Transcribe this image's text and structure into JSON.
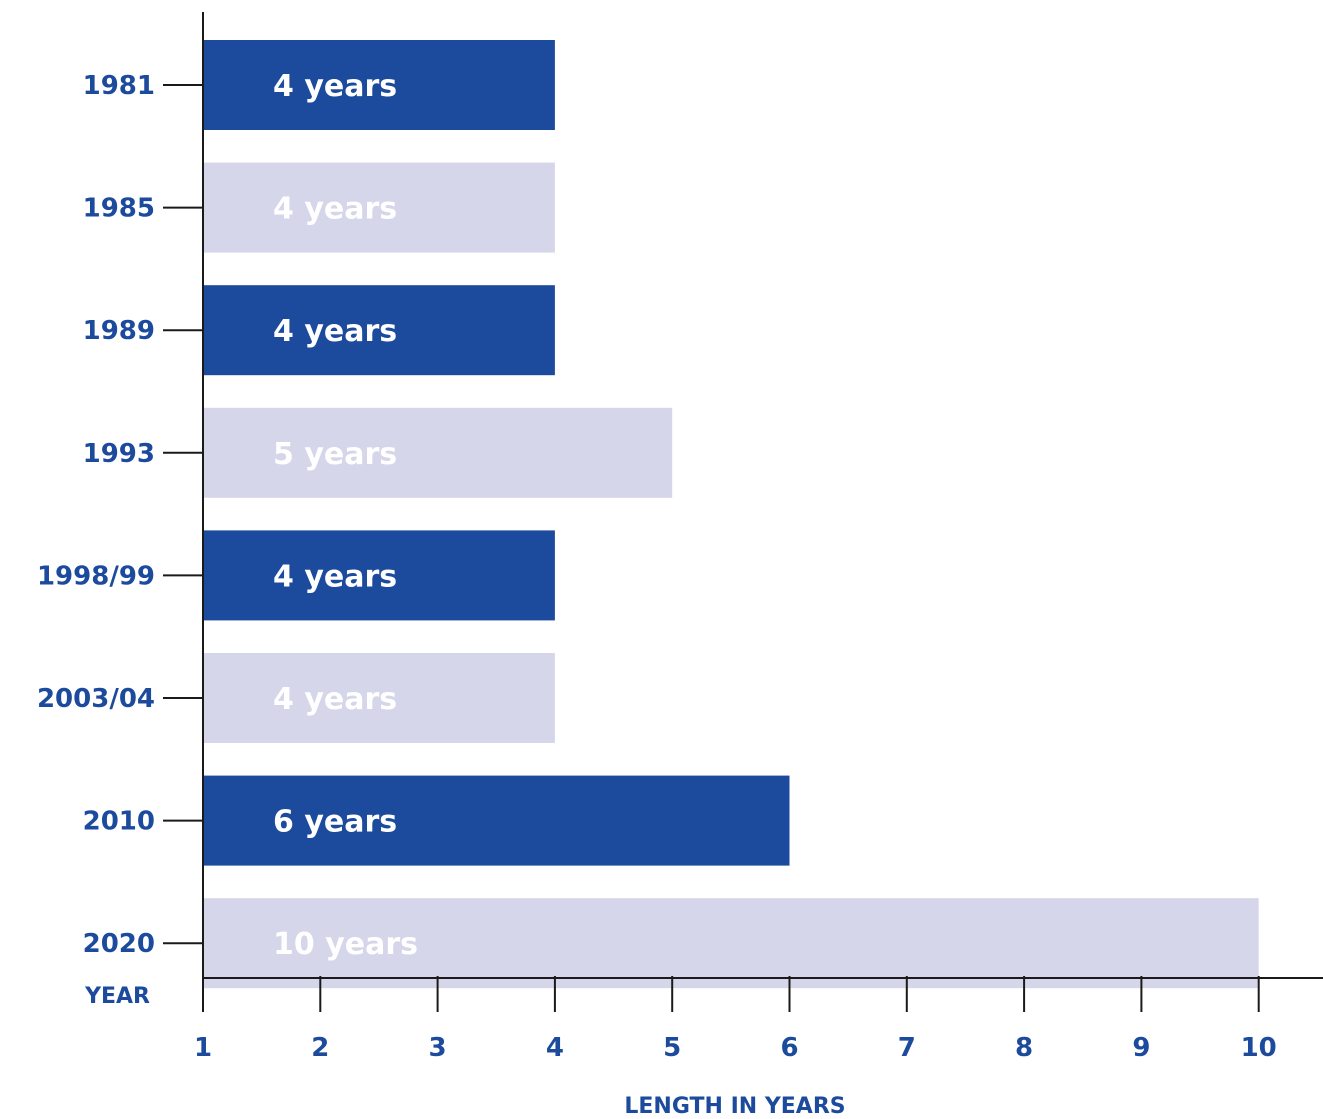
{
  "chart_data": {
    "type": "bar",
    "orientation": "horizontal",
    "categories": [
      "1981",
      "1985",
      "1989",
      "1993",
      "1998/99",
      "2003/04",
      "2010",
      "2020"
    ],
    "values": [
      4,
      4,
      4,
      5,
      4,
      4,
      6,
      10
    ],
    "bar_labels": [
      "4 years",
      "4 years",
      "4 years",
      "5 years",
      "4 years",
      "4 years",
      "6 years",
      "10 years"
    ],
    "x_ticks": [
      "1",
      "2",
      "3",
      "4",
      "5",
      "6",
      "7",
      "8",
      "9",
      "10"
    ],
    "xlim": [
      1,
      10
    ],
    "xlabel": "LENGTH IN YEARS",
    "ylabel": "YEAR",
    "grid": false,
    "colors": {
      "dark": "#1c4a9c",
      "light": "#d6d6ea",
      "text_dark": "#1c4a9c",
      "bar_text_on_dark": "#ffffff",
      "bar_text_on_light": "#ffffff",
      "axis": "#1a1a1a"
    },
    "bar_color_pattern": [
      "dark",
      "light",
      "dark",
      "light",
      "dark",
      "light",
      "dark",
      "light"
    ]
  }
}
